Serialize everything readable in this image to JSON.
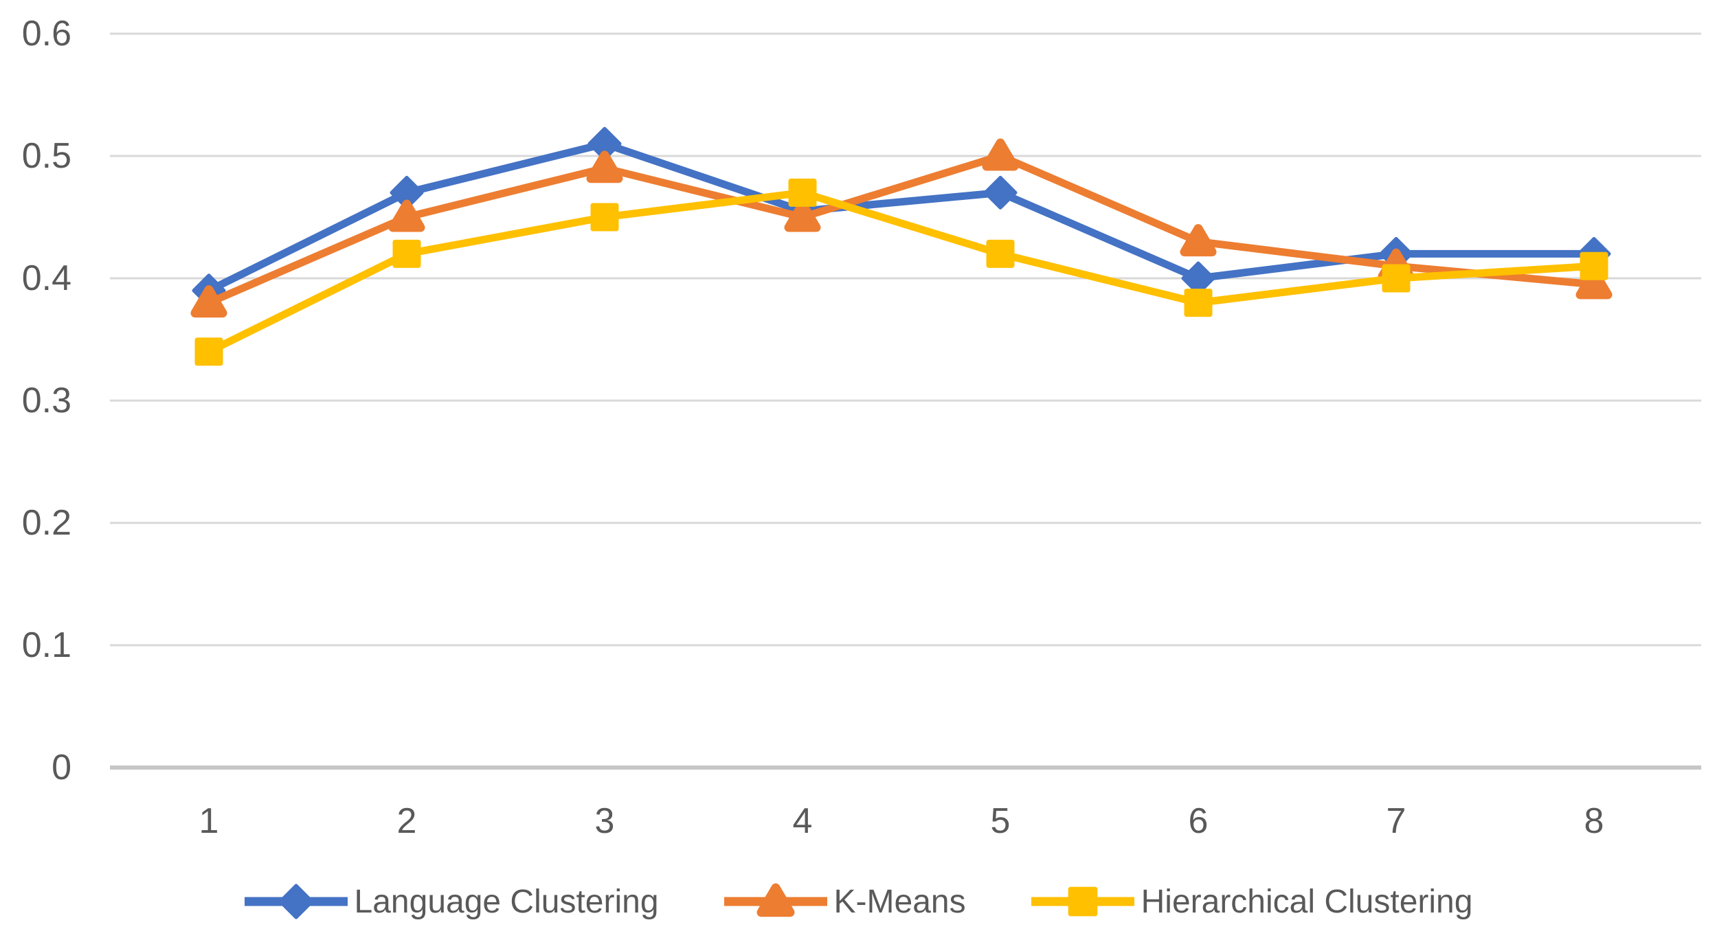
{
  "chart_data": {
    "type": "line",
    "title": "",
    "xlabel": "",
    "ylabel": "",
    "categories": [
      "1",
      "2",
      "3",
      "4",
      "5",
      "6",
      "7",
      "8"
    ],
    "series": [
      {
        "name": "Language Clustering",
        "color": "#4472C4",
        "marker": "diamond",
        "values": [
          0.39,
          0.47,
          0.51,
          0.455,
          0.47,
          0.4,
          0.42,
          0.42
        ]
      },
      {
        "name": "K-Means",
        "color": "#ED7D31",
        "marker": "triangle",
        "values": [
          0.38,
          0.45,
          0.49,
          0.45,
          0.5,
          0.43,
          0.41,
          0.395
        ]
      },
      {
        "name": "Hierarchical Clustering",
        "color": "#FFC000",
        "marker": "square",
        "values": [
          0.34,
          0.42,
          0.45,
          0.47,
          0.42,
          0.38,
          0.4,
          0.41
        ]
      }
    ],
    "ylim": [
      0,
      0.6
    ],
    "yticks": [
      0,
      0.1,
      0.2,
      0.3,
      0.4,
      0.5,
      0.6
    ],
    "ytick_labels": [
      "0",
      "0.1",
      "0.2",
      "0.3",
      "0.4",
      "0.5",
      "0.6"
    ],
    "grid": "horizontal",
    "gridline_color": "#D9D9D9",
    "axis_line_color": "#C6C6C6",
    "tick_label_color": "#595959",
    "legend_position": "bottom",
    "legend_text_color": "#595959",
    "background_color": "#FFFFFF"
  }
}
